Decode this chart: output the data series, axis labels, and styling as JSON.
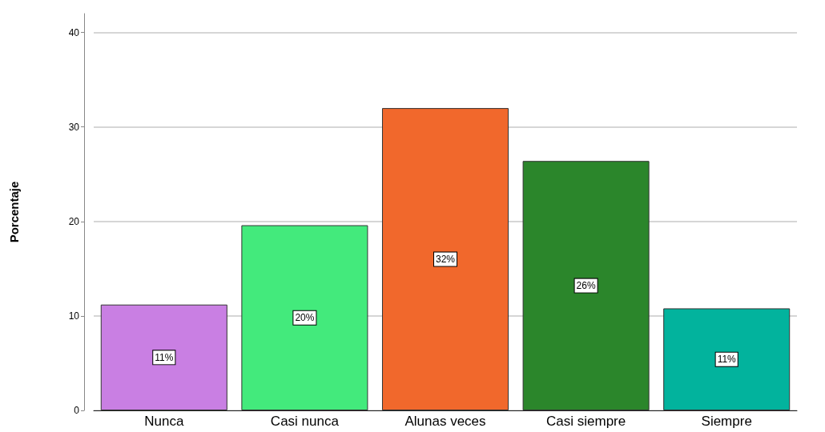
{
  "chart_data": {
    "type": "bar",
    "categories": [
      "Nunca",
      "Casi nunca",
      "Alunas veces",
      "Casi siempre",
      "Siempre"
    ],
    "values": [
      11.2,
      19.6,
      32.0,
      26.4,
      10.8
    ],
    "colors": [
      "#c97fe3",
      "#43ea7c",
      "#f1682c",
      "#2b862b",
      "#02b39d"
    ],
    "value_labels": [
      "11%",
      "20%",
      "32%",
      "26%",
      "11%"
    ],
    "ylabel": "Porcentaje",
    "ylim": [
      0,
      42
    ],
    "yticks": [
      0,
      10,
      20,
      30,
      40
    ],
    "grid": "y"
  }
}
